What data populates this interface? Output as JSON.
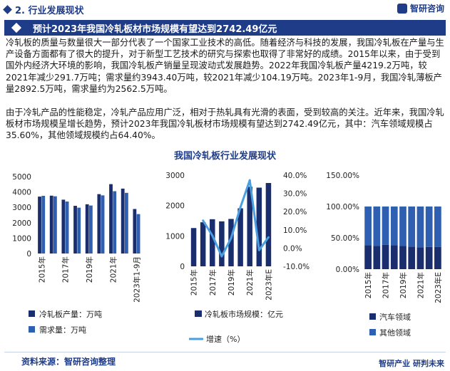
{
  "header": {
    "section_title": "2. 行业发展现状",
    "brand_name": "智研咨询"
  },
  "banner": {
    "title": "预计2023年我国冷轧板材市场规模有望达到2742.49亿元"
  },
  "paragraphs": [
    "冷轧板的质量与数量很大一部分代表了一个国家工业技术的高低。随着经济与科技的发展，我国冷轧板在产量与生产设备方面都有了很大的提升，对于新型工艺技术的研究与探索也取得了非常好的成绩。2015年以来，由于受到国外内经济大环境的影响，我国冷轧板产销量呈现波动式发展趋势。2022年我国冷轧板产量4219.2万吨，较2021年减少291.7万吨；需求量约3943.40万吨，较2021年减少104.19万吨。2023年1-9月，我国冷轧薄板产量2892.5万吨，需求量约为2562.5万吨。",
    "由于冷轧产品的性能稳定，冷轧产品应用广泛，相对于热轧具有光滑的表面，受到较高的关注。近年来，我国冷轧板材市场规模呈增长趋势，预计2023年我国冷轧板材市场规模有望达到2742.49亿元，其中：汽车领域规模占35.60%，其他领域规模约占64.40%。"
  ],
  "chart_section_title": "我国冷轧板行业发展现状",
  "colors": {
    "dark_blue": "#1a2e6e",
    "mid_blue": "#2f5fb0",
    "light_blue": "#4a9fe0",
    "grid": "#e6e6e6"
  },
  "chart_data": [
    {
      "type": "bar",
      "categories": [
        "2015年",
        "2016年",
        "2017年",
        "2018年",
        "2019年",
        "2020年",
        "2021年",
        "2022年",
        "2023年1-9月"
      ],
      "tick_labels": [
        "2015年",
        "",
        "2017年",
        "",
        "2019年",
        "",
        "2021年",
        "",
        "2023年1-9月"
      ],
      "y_ticks": [
        "0",
        "1000",
        "2000",
        "3000",
        "4000",
        "5000"
      ],
      "ylim": [
        0,
        5000
      ],
      "series": [
        {
          "name": "冷轧板产量：万吨",
          "color": "#1a2e6e",
          "values": [
            3700,
            3760,
            3500,
            3100,
            3200,
            3860,
            4510,
            4219.2,
            2892.5
          ]
        },
        {
          "name": "需求量：万吨",
          "color": "#2f5fb0",
          "values": [
            3750,
            3720,
            3380,
            2980,
            3120,
            3780,
            4050,
            3943.4,
            2562.5
          ]
        }
      ]
    },
    {
      "type": "bar+line",
      "categories": [
        "2015年",
        "2016年",
        "2017年",
        "2018年",
        "2019年",
        "2020年",
        "2021年",
        "2022年",
        "2023年E"
      ],
      "tick_labels": [
        "2015年",
        "",
        "2017年",
        "",
        "2019年",
        "",
        "2021年",
        "",
        "2023年E"
      ],
      "y_ticks": [
        "0",
        "1000",
        "2000",
        "3000"
      ],
      "y2_ticks": [
        "-10.0%",
        "0.0%",
        "10.0%",
        "20.0%",
        "30.0%",
        "40.0%"
      ],
      "ylim": [
        0,
        3000
      ],
      "y2lim": [
        -10,
        40
      ],
      "bars": {
        "name": "冷轧板市场规模：亿元",
        "color": "#1a2e6e",
        "values": [
          1260,
          1450,
          1550,
          1480,
          1560,
          1910,
          2620,
          2590,
          2742.49
        ]
      },
      "line": {
        "name": "增速（%）",
        "color": "#4a9fe0",
        "values": [
          15.1,
          6.9,
          -4.5,
          5.4,
          22.4,
          37.2,
          -1.1,
          5.9
        ]
      }
    },
    {
      "type": "stacked_bar",
      "categories": [
        "2015年",
        "2016年",
        "2017年",
        "2018年",
        "2019年",
        "2020年",
        "2021年",
        "2022年",
        "2023年E"
      ],
      "tick_labels": [
        "2015年",
        "",
        "2017年",
        "",
        "2019年",
        "",
        "2021年",
        "",
        "2023年E"
      ],
      "y_ticks": [
        "0.00%",
        "50.00%",
        "100.00%",
        "150.00%"
      ],
      "ylim": [
        0,
        150
      ],
      "series": [
        {
          "name": "汽车领域",
          "color": "#1a2e6e",
          "values": [
            38,
            37,
            39,
            38,
            37,
            36,
            35,
            35.5,
            35.6
          ]
        },
        {
          "name": "其他领域",
          "color": "#2f5fb0",
          "values": [
            62,
            63,
            61,
            62,
            63,
            64,
            65,
            64.5,
            64.4
          ]
        }
      ]
    }
  ],
  "footer": {
    "source": "资料来源：智研咨询整理",
    "slogan": "智研产业 研判未来"
  }
}
